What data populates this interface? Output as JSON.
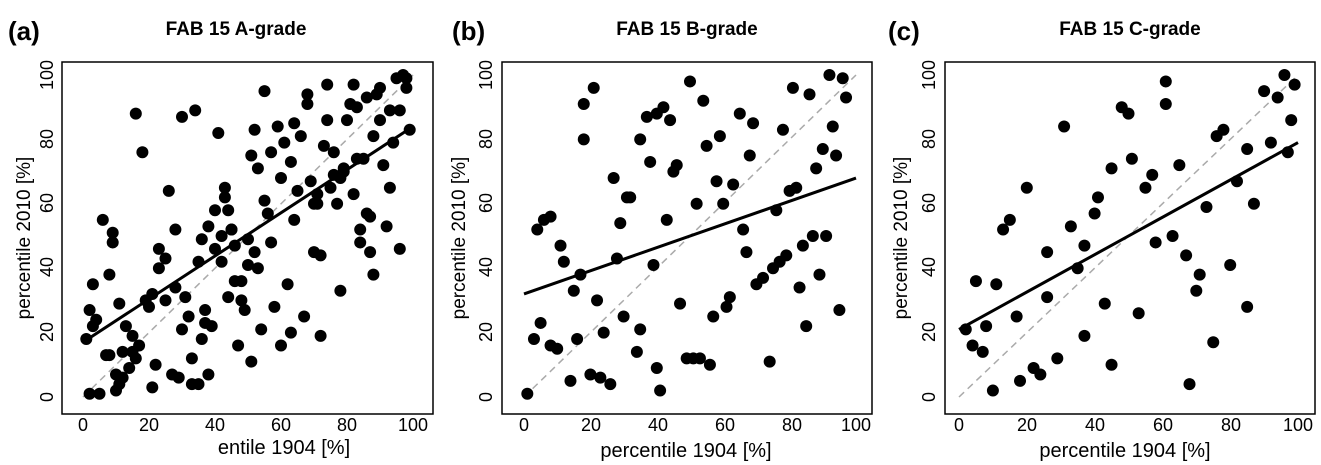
{
  "colors": {
    "points": "#000000",
    "fit_line": "#000000",
    "identity_line": "#aaaaaa"
  },
  "chart_data": [
    {
      "type": "scatter",
      "panel_label": "(a)",
      "title": "FAB 15 A-grade",
      "xlabel": "entile 1904 [%]",
      "ylabel": "percentile 2010 [%]",
      "xlim": [
        0,
        100
      ],
      "ylim": [
        0,
        100
      ],
      "xticks": [
        "0",
        "20",
        "40",
        "60",
        "80",
        "100"
      ],
      "yticks": [
        "0",
        "20",
        "40",
        "60",
        "80",
        "100"
      ],
      "grid": false,
      "reference_line": {
        "style": "dashed",
        "x": [
          0,
          100
        ],
        "y": [
          0,
          100
        ]
      },
      "fit_line": {
        "x": [
          0,
          100
        ],
        "y": [
          17,
          84
        ]
      },
      "points": [
        [
          1,
          18
        ],
        [
          2,
          1
        ],
        [
          2,
          27
        ],
        [
          3,
          35
        ],
        [
          3,
          22
        ],
        [
          4,
          24
        ],
        [
          5,
          1
        ],
        [
          6,
          55
        ],
        [
          7,
          13
        ],
        [
          8,
          13
        ],
        [
          8,
          38
        ],
        [
          9,
          51
        ],
        [
          9,
          48
        ],
        [
          10,
          7
        ],
        [
          10,
          2
        ],
        [
          11,
          29
        ],
        [
          11,
          4
        ],
        [
          12,
          14
        ],
        [
          12,
          6
        ],
        [
          13,
          22
        ],
        [
          14,
          9
        ],
        [
          15,
          19
        ],
        [
          15,
          14
        ],
        [
          16,
          12
        ],
        [
          16,
          88
        ],
        [
          17,
          16
        ],
        [
          18,
          76
        ],
        [
          19,
          30
        ],
        [
          20,
          28
        ],
        [
          21,
          3
        ],
        [
          21,
          32
        ],
        [
          22,
          10
        ],
        [
          23,
          40
        ],
        [
          23,
          46
        ],
        [
          25,
          43
        ],
        [
          25,
          30
        ],
        [
          26,
          64
        ],
        [
          27,
          7
        ],
        [
          28,
          52
        ],
        [
          28,
          34
        ],
        [
          29,
          6
        ],
        [
          30,
          87
        ],
        [
          30,
          21
        ],
        [
          31,
          31
        ],
        [
          32,
          25
        ],
        [
          33,
          12
        ],
        [
          33,
          4
        ],
        [
          34,
          89
        ],
        [
          35,
          4
        ],
        [
          35,
          42
        ],
        [
          36,
          18
        ],
        [
          36,
          49
        ],
        [
          37,
          27
        ],
        [
          37,
          23
        ],
        [
          38,
          53
        ],
        [
          38,
          7
        ],
        [
          39,
          22
        ],
        [
          40,
          58
        ],
        [
          40,
          46
        ],
        [
          41,
          82
        ],
        [
          42,
          42
        ],
        [
          42,
          50
        ],
        [
          43,
          62
        ],
        [
          43,
          65
        ],
        [
          44,
          58
        ],
        [
          44,
          31
        ],
        [
          45,
          52
        ],
        [
          45,
          52
        ],
        [
          46,
          47
        ],
        [
          46,
          36
        ],
        [
          47,
          16
        ],
        [
          48,
          36
        ],
        [
          48,
          30
        ],
        [
          49,
          27
        ],
        [
          50,
          49
        ],
        [
          50,
          41
        ],
        [
          51,
          11
        ],
        [
          51,
          75
        ],
        [
          52,
          83
        ],
        [
          52,
          45
        ],
        [
          53,
          40
        ],
        [
          53,
          71
        ],
        [
          54,
          21
        ],
        [
          55,
          95
        ],
        [
          55,
          61
        ],
        [
          56,
          57
        ],
        [
          57,
          76
        ],
        [
          57,
          48
        ],
        [
          58,
          28
        ],
        [
          59,
          84
        ],
        [
          60,
          68
        ],
        [
          60,
          16
        ],
        [
          61,
          79
        ],
        [
          62,
          35
        ],
        [
          63,
          73
        ],
        [
          63,
          20
        ],
        [
          64,
          85
        ],
        [
          64,
          55
        ],
        [
          65,
          64
        ],
        [
          66,
          81
        ],
        [
          67,
          25
        ],
        [
          68,
          91
        ],
        [
          68,
          94
        ],
        [
          69,
          67
        ],
        [
          70,
          60
        ],
        [
          70,
          45
        ],
        [
          71,
          63
        ],
        [
          71,
          60
        ],
        [
          72,
          44
        ],
        [
          72,
          19
        ],
        [
          73,
          78
        ],
        [
          74,
          86
        ],
        [
          74,
          97
        ],
        [
          75,
          65
        ],
        [
          76,
          69
        ],
        [
          76,
          76
        ],
        [
          77,
          60
        ],
        [
          78,
          33
        ],
        [
          78,
          68
        ],
        [
          79,
          71
        ],
        [
          79,
          70
        ],
        [
          80,
          86
        ],
        [
          81,
          91
        ],
        [
          82,
          63
        ],
        [
          82,
          97
        ],
        [
          83,
          74
        ],
        [
          83,
          90
        ],
        [
          84,
          48
        ],
        [
          84,
          52
        ],
        [
          85,
          74
        ],
        [
          86,
          57
        ],
        [
          86,
          93
        ],
        [
          87,
          45
        ],
        [
          87,
          56
        ],
        [
          88,
          38
        ],
        [
          88,
          81
        ],
        [
          89,
          94
        ],
        [
          90,
          86
        ],
        [
          90,
          96
        ],
        [
          91,
          72
        ],
        [
          92,
          53
        ],
        [
          93,
          65
        ],
        [
          93,
          89
        ],
        [
          94,
          79
        ],
        [
          95,
          99
        ],
        [
          96,
          89
        ],
        [
          96,
          46
        ],
        [
          97,
          100
        ],
        [
          98,
          96
        ],
        [
          98,
          99
        ],
        [
          99,
          83
        ]
      ]
    },
    {
      "type": "scatter",
      "panel_label": "(b)",
      "title": "FAB 15 B-grade",
      "xlabel": "percentile 1904 [%]",
      "ylabel": "percentile 2010 [%]",
      "xlim": [
        0,
        100
      ],
      "ylim": [
        0,
        100
      ],
      "xticks": [
        "0",
        "20",
        "40",
        "60",
        "80",
        "100"
      ],
      "yticks": [
        "0",
        "20",
        "40",
        "60",
        "80",
        "100"
      ],
      "grid": false,
      "reference_line": {
        "style": "dashed",
        "x": [
          0,
          100
        ],
        "y": [
          0,
          100
        ]
      },
      "fit_line": {
        "x": [
          0,
          100
        ],
        "y": [
          32,
          68
        ]
      },
      "points": [
        [
          1,
          1
        ],
        [
          3,
          18
        ],
        [
          4,
          52
        ],
        [
          5,
          23
        ],
        [
          6,
          55
        ],
        [
          8,
          16
        ],
        [
          8,
          56
        ],
        [
          10,
          15
        ],
        [
          11,
          47
        ],
        [
          12,
          42
        ],
        [
          14,
          5
        ],
        [
          15,
          33
        ],
        [
          16,
          18
        ],
        [
          17,
          38
        ],
        [
          18,
          91
        ],
        [
          18,
          80
        ],
        [
          20,
          7
        ],
        [
          21,
          96
        ],
        [
          22,
          30
        ],
        [
          23,
          6
        ],
        [
          24,
          20
        ],
        [
          26,
          4
        ],
        [
          27,
          68
        ],
        [
          28,
          43
        ],
        [
          29,
          54
        ],
        [
          30,
          25
        ],
        [
          31,
          62
        ],
        [
          32,
          62
        ],
        [
          34,
          14
        ],
        [
          35,
          80
        ],
        [
          35,
          21
        ],
        [
          37,
          87
        ],
        [
          38,
          73
        ],
        [
          39,
          41
        ],
        [
          40,
          9
        ],
        [
          40,
          88
        ],
        [
          41,
          2
        ],
        [
          42,
          90
        ],
        [
          43,
          55
        ],
        [
          44,
          86
        ],
        [
          45,
          70
        ],
        [
          46,
          72
        ],
        [
          47,
          29
        ],
        [
          49,
          12
        ],
        [
          50,
          98
        ],
        [
          51,
          12
        ],
        [
          52,
          60
        ],
        [
          53,
          12
        ],
        [
          54,
          92
        ],
        [
          55,
          78
        ],
        [
          56,
          10
        ],
        [
          57,
          25
        ],
        [
          58,
          67
        ],
        [
          59,
          81
        ],
        [
          60,
          60
        ],
        [
          61,
          28
        ],
        [
          62,
          31
        ],
        [
          63,
          66
        ],
        [
          65,
          88
        ],
        [
          66,
          52
        ],
        [
          67,
          45
        ],
        [
          68,
          75
        ],
        [
          69,
          85
        ],
        [
          70,
          35
        ],
        [
          72,
          37
        ],
        [
          74,
          11
        ],
        [
          75,
          40
        ],
        [
          76,
          58
        ],
        [
          77,
          42
        ],
        [
          78,
          83
        ],
        [
          79,
          44
        ],
        [
          80,
          64
        ],
        [
          81,
          96
        ],
        [
          82,
          65
        ],
        [
          83,
          34
        ],
        [
          84,
          47
        ],
        [
          85,
          22
        ],
        [
          86,
          94
        ],
        [
          87,
          50
        ],
        [
          88,
          71
        ],
        [
          89,
          38
        ],
        [
          90,
          77
        ],
        [
          91,
          50
        ],
        [
          92,
          100
        ],
        [
          93,
          84
        ],
        [
          94,
          75
        ],
        [
          95,
          27
        ],
        [
          96,
          99
        ],
        [
          97,
          93
        ]
      ]
    },
    {
      "type": "scatter",
      "panel_label": "(c)",
      "title": "FAB 15 C-grade",
      "xlabel": "percentile 1904 [%]",
      "ylabel": "percentile 2010 [%]",
      "xlim": [
        0,
        100
      ],
      "ylim": [
        0,
        100
      ],
      "xticks": [
        "0",
        "20",
        "40",
        "60",
        "80",
        "100"
      ],
      "yticks": [
        "0",
        "20",
        "40",
        "60",
        "80",
        "100"
      ],
      "grid": false,
      "reference_line": {
        "style": "dashed",
        "x": [
          0,
          100
        ],
        "y": [
          0,
          100
        ]
      },
      "fit_line": {
        "x": [
          0,
          100
        ],
        "y": [
          21,
          79
        ]
      },
      "points": [
        [
          2,
          21
        ],
        [
          4,
          16
        ],
        [
          5,
          36
        ],
        [
          7,
          14
        ],
        [
          8,
          22
        ],
        [
          10,
          2
        ],
        [
          11,
          35
        ],
        [
          13,
          52
        ],
        [
          15,
          55
        ],
        [
          17,
          25
        ],
        [
          18,
          5
        ],
        [
          20,
          65
        ],
        [
          22,
          9
        ],
        [
          24,
          7
        ],
        [
          26,
          45
        ],
        [
          26,
          31
        ],
        [
          29,
          12
        ],
        [
          31,
          84
        ],
        [
          33,
          53
        ],
        [
          35,
          40
        ],
        [
          37,
          47
        ],
        [
          37,
          19
        ],
        [
          40,
          57
        ],
        [
          41,
          62
        ],
        [
          43,
          29
        ],
        [
          45,
          71
        ],
        [
          45,
          10
        ],
        [
          48,
          90
        ],
        [
          50,
          88
        ],
        [
          51,
          74
        ],
        [
          53,
          26
        ],
        [
          55,
          65
        ],
        [
          57,
          69
        ],
        [
          58,
          48
        ],
        [
          61,
          98
        ],
        [
          61,
          91
        ],
        [
          63,
          50
        ],
        [
          65,
          72
        ],
        [
          67,
          44
        ],
        [
          68,
          4
        ],
        [
          70,
          33
        ],
        [
          71,
          38
        ],
        [
          73,
          59
        ],
        [
          75,
          17
        ],
        [
          76,
          81
        ],
        [
          78,
          83
        ],
        [
          80,
          41
        ],
        [
          82,
          67
        ],
        [
          85,
          77
        ],
        [
          85,
          28
        ],
        [
          87,
          60
        ],
        [
          90,
          95
        ],
        [
          92,
          79
        ],
        [
          94,
          93
        ],
        [
          96,
          100
        ],
        [
          97,
          76
        ],
        [
          98,
          86
        ],
        [
          99,
          97
        ]
      ]
    }
  ]
}
